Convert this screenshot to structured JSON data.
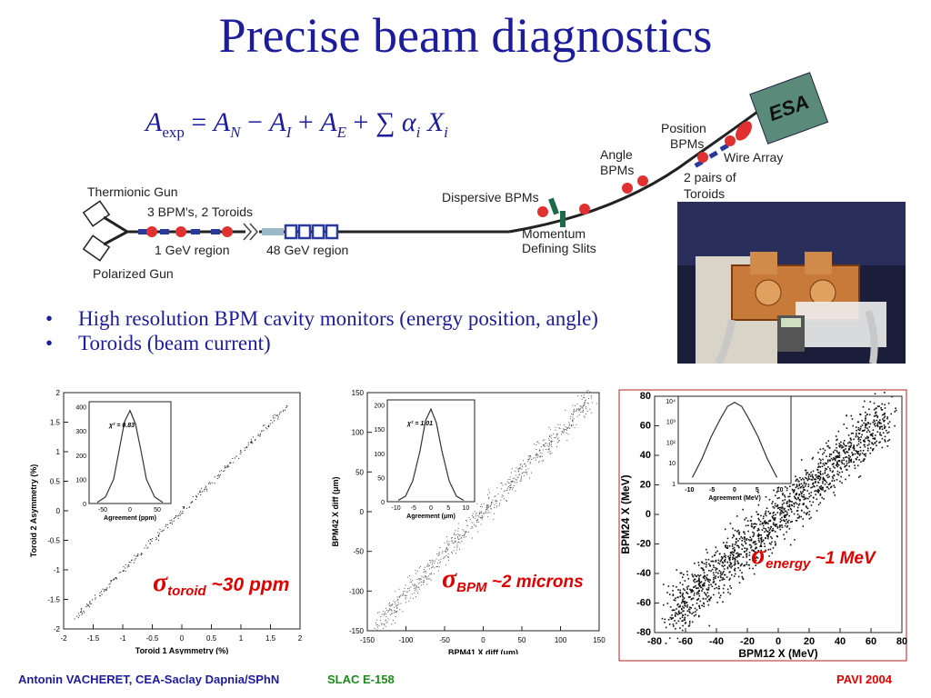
{
  "title": "Precise beam diagnostics",
  "formula": {
    "a": "A",
    "exp": "exp",
    "n": "N",
    "i": "I",
    "e": "E",
    "sum": "∑",
    "alpha": "α",
    "x": "X",
    "sub_i": "i"
  },
  "beamline": {
    "thermionic_gun": "Thermionic Gun",
    "polarized_gun": "Polarized Gun",
    "bpms_toroids": "3 BPM's, 2 Toroids",
    "region_1gev": "1 GeV region",
    "region_48gev": "48 GeV region",
    "dispersive_bpms": "Dispersive BPMs",
    "momentum_slits_1": "Momentum",
    "momentum_slits_2": "Defining Slits",
    "angle_bpms_1": "Angle",
    "angle_bpms_2": "BPMs",
    "position_bpms_1": "Position",
    "position_bpms_2": "BPMs",
    "wire_array": "Wire Array",
    "pairs_toroids_1": "2 pairs of",
    "pairs_toroids_2": "Toroids",
    "esa": "ESA"
  },
  "bullets": [
    "High resolution BPM cavity monitors (energy position, angle)",
    "Toroids (beam current)"
  ],
  "chart_data": [
    {
      "type": "scatter",
      "xlabel": "Toroid 1 Asymmetry (%)",
      "ylabel": "Toroid 2 Asymmetry (%)",
      "xlim": [
        -2,
        2
      ],
      "ylim": [
        -2,
        2
      ],
      "x_ticks": [
        "-2",
        "-1.5",
        "-1",
        "-0.5",
        "0",
        "0.5",
        "1",
        "1.5",
        "2"
      ],
      "y_ticks": [
        "-2",
        "-1.5",
        "-1",
        "-0.5",
        "0",
        "0.5",
        "1",
        "1.5",
        "2"
      ],
      "points_line": {
        "x": [
          -1.8,
          1.8
        ],
        "y": [
          -1.8,
          1.8
        ]
      },
      "inset": {
        "type": "histogram",
        "xlabel": "Agreement (ppm)",
        "annotation": "χ² = 0.83",
        "x_ticks": [
          "-50",
          "0",
          "50"
        ],
        "y_ticks": [
          "0",
          "100",
          "200",
          "300",
          "400"
        ],
        "xlim": [
          -75,
          75
        ],
        "ylim": [
          0,
          460
        ],
        "x": [
          -60,
          -45,
          -30,
          -20,
          -10,
          0,
          10,
          20,
          30,
          45,
          60
        ],
        "y": [
          5,
          30,
          110,
          240,
          370,
          420,
          360,
          240,
          110,
          30,
          5
        ]
      },
      "annotation": {
        "greek": "σ",
        "sub": "toroid",
        "text": "~30 ppm"
      }
    },
    {
      "type": "scatter",
      "xlabel": "BPM41 X diff (μm)",
      "ylabel": "BPM42 X diff (μm)",
      "xlim": [
        -150,
        150
      ],
      "ylim": [
        -150,
        150
      ],
      "x_ticks": [
        "-150",
        "-100",
        "-50",
        "0",
        "50",
        "100",
        "150"
      ],
      "y_ticks": [
        "-150",
        "-100",
        "-50",
        "0",
        "50",
        "100",
        "150"
      ],
      "points_line": {
        "x": [
          -140,
          140
        ],
        "y": [
          -145,
          145
        ]
      },
      "inset": {
        "type": "histogram",
        "xlabel": "Agreement (μm)",
        "annotation": "χ² = 1.01",
        "x_ticks": [
          "-10",
          "-5",
          "0",
          "5",
          "10"
        ],
        "y_ticks": [
          "0",
          "50",
          "100",
          "150",
          "200"
        ],
        "xlim": [
          -12,
          12
        ],
        "ylim": [
          0,
          220
        ],
        "x": [
          -9,
          -7,
          -5,
          -3,
          -1.5,
          0,
          1.5,
          3,
          5,
          7,
          9
        ],
        "y": [
          3,
          12,
          45,
          110,
          175,
          200,
          170,
          110,
          45,
          12,
          3
        ]
      },
      "annotation": {
        "greek": "σ",
        "sub": "BPM",
        "text": "~2 microns"
      }
    },
    {
      "type": "scatter",
      "xlabel": "BPM12 X (MeV)",
      "ylabel": "BPM24 X (MeV)",
      "xlim": [
        -80,
        80
      ],
      "ylim": [
        -85,
        85
      ],
      "x_ticks": [
        "-80",
        "-60",
        "-40",
        "-20",
        "0",
        "20",
        "40",
        "60",
        "80"
      ],
      "y_ticks": [
        "-80",
        "-60",
        "-40",
        "-20",
        "0",
        "20",
        "40",
        "60",
        "80"
      ],
      "points_line": {
        "x": [
          -70,
          70
        ],
        "y": [
          -72,
          72
        ]
      },
      "inset": {
        "type": "histogram",
        "xlabel": "Agreement (MeV)",
        "x_ticks": [
          "-10",
          "-5",
          "0",
          "5",
          "10"
        ],
        "y_ticks": [
          "1",
          "10",
          "10²",
          "10³",
          "10⁴"
        ],
        "xlim": [
          -12,
          12
        ],
        "ylim": [
          0,
          4.3
        ],
        "log_y": true,
        "x": [
          -9,
          -7,
          -5,
          -3,
          -1.5,
          0,
          1.5,
          3,
          5,
          7,
          9
        ],
        "y": [
          0.3,
          1.2,
          2.3,
          3.2,
          3.8,
          4.0,
          3.8,
          3.2,
          2.3,
          1.2,
          0.3
        ]
      },
      "annotation": {
        "greek": "σ",
        "sub": "energy",
        "text": "~1 MeV"
      }
    }
  ],
  "footer": {
    "author": "Antonin VACHERET,  CEA-Saclay  Dapnia/SPhN",
    "experiment": "SLAC E-158",
    "conference": "PAVI 2004"
  },
  "colors": {
    "title": "#1c1c9c",
    "sigma": "#e00000",
    "footer_author": "#1c1c9c",
    "footer_exp": "#1c8c1c",
    "footer_conf": "#e00000",
    "esa_box": "#5a8a7a"
  }
}
